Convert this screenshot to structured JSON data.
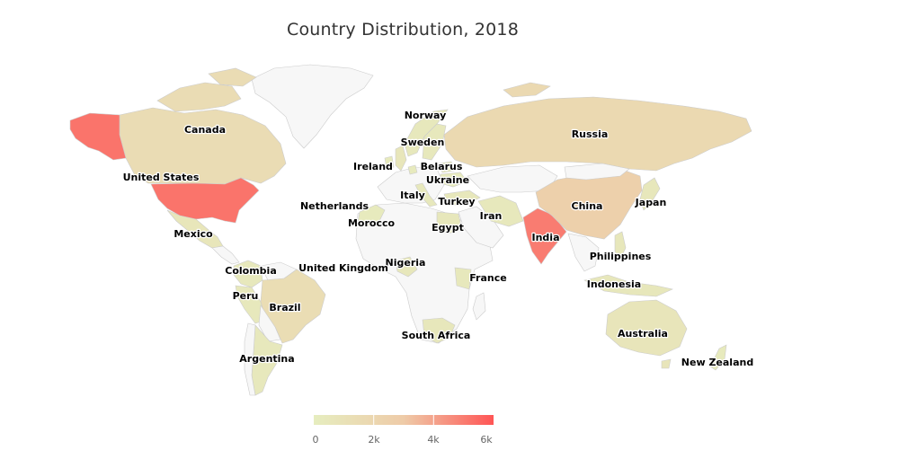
{
  "chart_data": {
    "type": "choropleth",
    "title": "Country Distribution, 2018",
    "legend": {
      "min": 0,
      "max": 6000,
      "ticks": [
        "0",
        "2k",
        "4k",
        "6k"
      ],
      "color_min": "#e6edbf",
      "color_mid": "#eecba8",
      "color_max": "#ff5555"
    },
    "no_data_color": "#f7f7f7",
    "regions": [
      {
        "name": "United States",
        "value": 5200
      },
      {
        "name": "India",
        "value": 5000
      },
      {
        "name": "China",
        "value": 2600
      },
      {
        "name": "Russia",
        "value": 1800
      },
      {
        "name": "Canada",
        "value": 1500
      },
      {
        "name": "Brazil",
        "value": 1400
      },
      {
        "name": "Australia",
        "value": 700
      },
      {
        "name": "Mexico",
        "value": 600
      },
      {
        "name": "United Kingdom",
        "value": 600
      },
      {
        "name": "Nigeria",
        "value": 500
      },
      {
        "name": "Norway",
        "value": 400
      },
      {
        "name": "Sweden",
        "value": 400
      },
      {
        "name": "Ireland",
        "value": 300
      },
      {
        "name": "Belarus",
        "value": 300
      },
      {
        "name": "Ukraine",
        "value": 300
      },
      {
        "name": "Netherlands",
        "value": 300
      },
      {
        "name": "Italy",
        "value": 400
      },
      {
        "name": "Turkey",
        "value": 500
      },
      {
        "name": "Iran",
        "value": 400
      },
      {
        "name": "Morocco",
        "value": 300
      },
      {
        "name": "Egypt",
        "value": 500
      },
      {
        "name": "Japan",
        "value": 500
      },
      {
        "name": "Philippines",
        "value": 500
      },
      {
        "name": "Indonesia",
        "value": 500
      },
      {
        "name": "Colombia",
        "value": 400
      },
      {
        "name": "Peru",
        "value": 400
      },
      {
        "name": "Argentina",
        "value": 400
      },
      {
        "name": "France",
        "value": 400
      },
      {
        "name": "South Africa",
        "value": 500
      },
      {
        "name": "New Zealand",
        "value": 300
      }
    ]
  }
}
